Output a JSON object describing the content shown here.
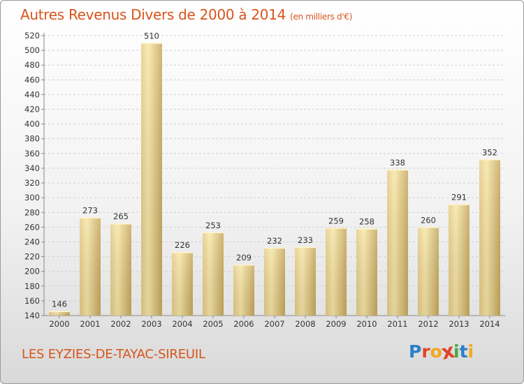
{
  "header": {
    "title": "Autres Revenus Divers de 2000 à 2014",
    "subtitle": "(en milliers d'€)"
  },
  "footer": {
    "commune": "LES EYZIES-DE-TAYAC-SIREUIL",
    "logo_text": "Proxiti"
  },
  "colors": {
    "title": "#d8541c",
    "bar_light": "#f7e4a4",
    "bar_dark": "#c8a95e",
    "grid": "#cccccc"
  },
  "chart_data": {
    "type": "bar",
    "title": "Autres Revenus Divers de 2000 à 2014",
    "subtitle": "(en milliers d'€)",
    "xlabel": "",
    "ylabel": "",
    "categories": [
      "2000",
      "2001",
      "2002",
      "2003",
      "2004",
      "2005",
      "2006",
      "2007",
      "2008",
      "2009",
      "2010",
      "2011",
      "2012",
      "2013",
      "2014"
    ],
    "values": [
      146,
      273,
      265,
      510,
      226,
      253,
      209,
      232,
      233,
      259,
      258,
      338,
      260,
      291,
      352
    ],
    "ylim": [
      140,
      520
    ],
    "yticks": [
      140,
      160,
      180,
      200,
      220,
      240,
      260,
      280,
      300,
      320,
      340,
      360,
      380,
      400,
      420,
      440,
      460,
      480,
      500,
      520
    ],
    "grid": true,
    "legend": "none"
  }
}
